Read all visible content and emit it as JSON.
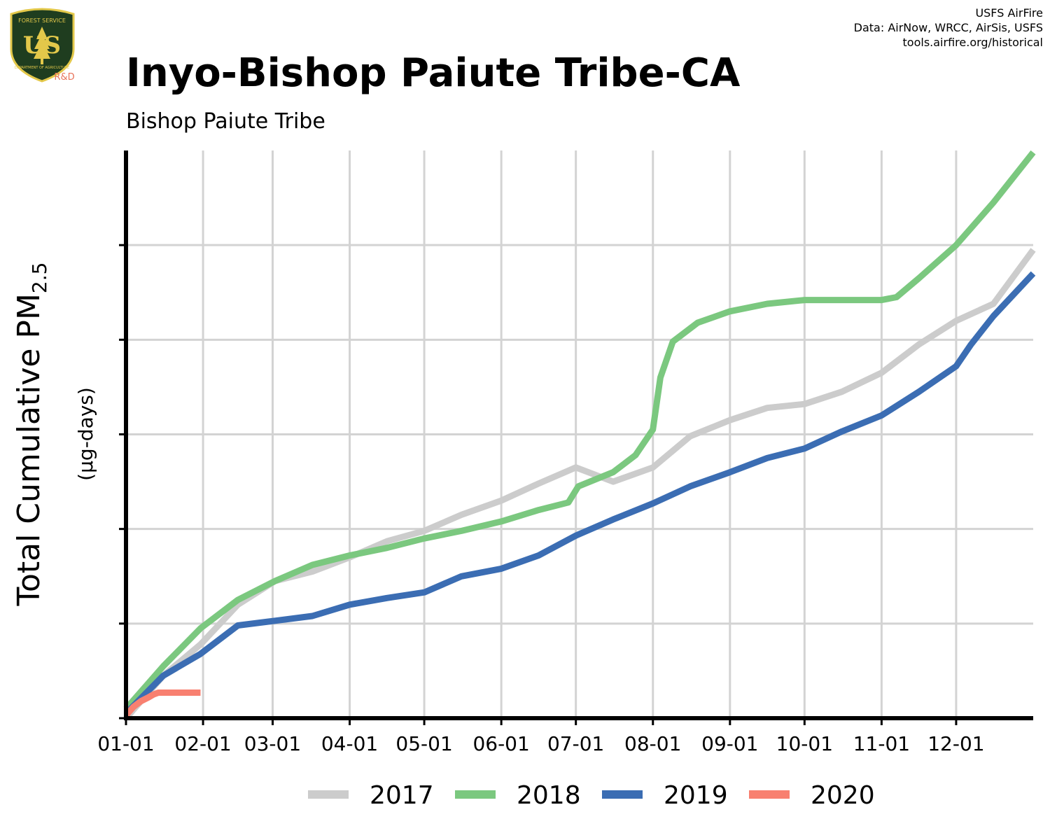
{
  "header": {
    "title": "Inyo-Bishop Paiute Tribe-CA",
    "subtitle": "Bishop Paiute Tribe",
    "credits": [
      "USFS AirFire",
      "Data: AirNow, WRCC, AirSis, USFS",
      "tools.airfire.org/historical"
    ]
  },
  "logo": {
    "top_text": "FOREST SERVICE",
    "main_text": "US",
    "bottom_text": "DEPARTMENT OF AGRICULTURE",
    "badge_text": "R&D",
    "colors": {
      "shield": "#1f3d1f",
      "trim": "#e3c84a",
      "badge": "#e8735a"
    }
  },
  "chart_data": {
    "type": "line",
    "title": "Inyo-Bishop Paiute Tribe-CA",
    "subtitle": "Bishop Paiute Tribe",
    "ylabel_main": "Total Cumulative PM",
    "ylabel_sub": "2.5",
    "ylabel_units": "(µg-days)",
    "xlabel": "",
    "x_ticks": [
      "01-01",
      "02-01",
      "03-01",
      "04-01",
      "05-01",
      "06-01",
      "07-01",
      "08-01",
      "09-01",
      "10-01",
      "11-01",
      "12-01"
    ],
    "x_tick_days": [
      0,
      31,
      59,
      90,
      120,
      151,
      181,
      212,
      243,
      273,
      304,
      334
    ],
    "xlim": [
      0,
      365
    ],
    "ylim": [
      0,
      6
    ],
    "y_gridlines": [
      1,
      2,
      3,
      4,
      5
    ],
    "y_tick_labels_shown": false,
    "grid": true,
    "legend_position": "bottom",
    "series": [
      {
        "name": "2017",
        "color": "#cccccc",
        "x": [
          0,
          15,
          30,
          45,
          60,
          75,
          90,
          105,
          120,
          135,
          151,
          166,
          181,
          196,
          212,
          227,
          243,
          258,
          273,
          288,
          304,
          319,
          334,
          349,
          365
        ],
        "y": [
          0,
          0.45,
          0.78,
          1.2,
          1.45,
          1.55,
          1.7,
          1.87,
          1.98,
          2.15,
          2.3,
          2.48,
          2.65,
          2.5,
          2.65,
          2.98,
          3.15,
          3.28,
          3.32,
          3.45,
          3.65,
          3.95,
          4.2,
          4.38,
          4.95
        ]
      },
      {
        "name": "2018",
        "color": "#7bc87f",
        "x": [
          0,
          15,
          30,
          45,
          60,
          75,
          90,
          105,
          120,
          135,
          151,
          166,
          178,
          182,
          196,
          205,
          212,
          215,
          220,
          230,
          243,
          258,
          273,
          288,
          304,
          310,
          319,
          334,
          349,
          365
        ],
        "y": [
          0.1,
          0.55,
          0.95,
          1.25,
          1.45,
          1.62,
          1.72,
          1.8,
          1.9,
          1.98,
          2.08,
          2.2,
          2.28,
          2.45,
          2.6,
          2.78,
          3.05,
          3.6,
          3.98,
          4.18,
          4.3,
          4.38,
          4.42,
          4.42,
          4.42,
          4.45,
          4.65,
          5.0,
          5.45,
          5.98
        ]
      },
      {
        "name": "2019",
        "color": "#3b6db3",
        "x": [
          0,
          15,
          30,
          45,
          60,
          75,
          90,
          105,
          120,
          135,
          151,
          166,
          181,
          196,
          212,
          227,
          243,
          258,
          273,
          288,
          304,
          319,
          334,
          340,
          349,
          365
        ],
        "y": [
          0.05,
          0.45,
          0.68,
          0.98,
          1.03,
          1.08,
          1.2,
          1.27,
          1.33,
          1.5,
          1.58,
          1.72,
          1.93,
          2.1,
          2.27,
          2.45,
          2.6,
          2.75,
          2.85,
          3.03,
          3.2,
          3.45,
          3.72,
          3.95,
          4.25,
          4.7
        ]
      },
      {
        "name": "2020",
        "color": "#f88070",
        "x": [
          0,
          3,
          6,
          9,
          11,
          13,
          20,
          30
        ],
        "y": [
          0.03,
          0.12,
          0.18,
          0.22,
          0.25,
          0.27,
          0.27,
          0.27
        ]
      }
    ]
  }
}
